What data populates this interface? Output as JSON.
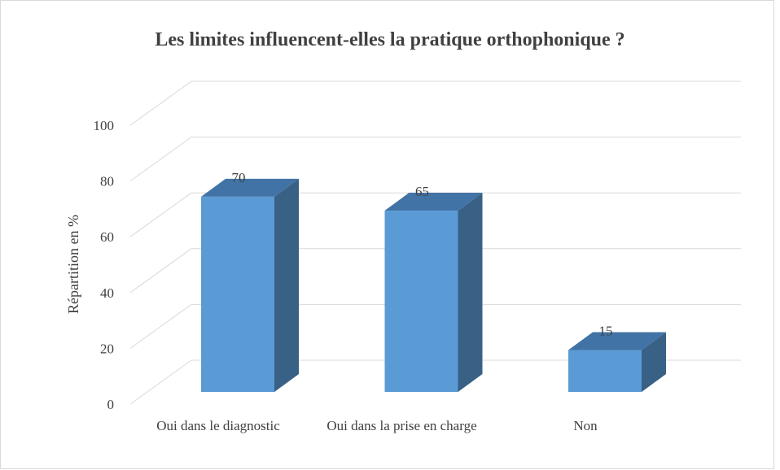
{
  "chart_data": {
    "type": "bar3d",
    "title": "Les limites  influencent-elles la pratique orthophonique ?",
    "ylabel": "Répartition en %",
    "categories": [
      "Oui dans le diagnostic",
      "Oui dans la prise en charge",
      "Non"
    ],
    "values": [
      70,
      65,
      15
    ],
    "color": "#5b9bd5",
    "ylim": [
      0,
      100
    ],
    "yticks": [
      0,
      20,
      40,
      60,
      80,
      100
    ],
    "grid": true
  }
}
